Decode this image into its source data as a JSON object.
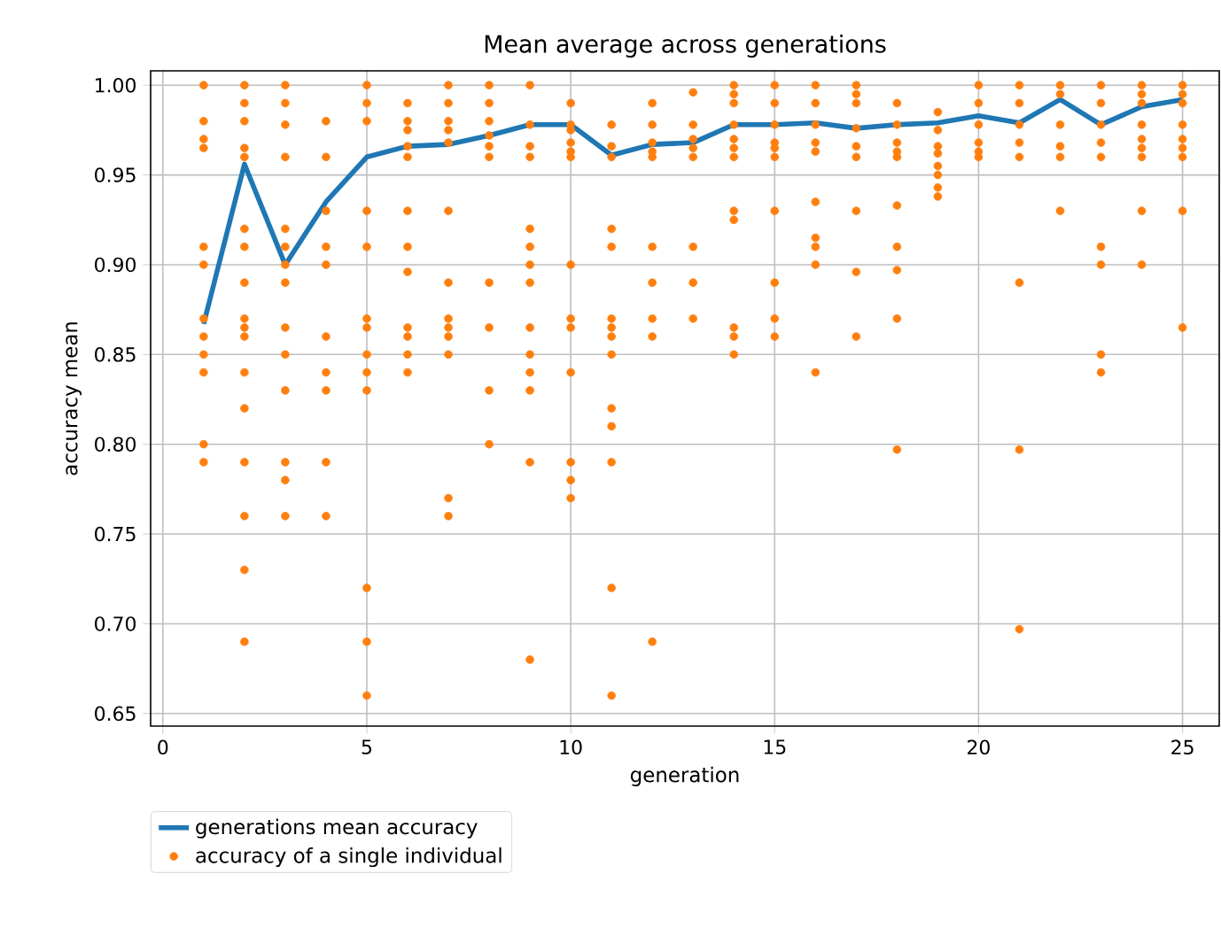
{
  "chart_data": {
    "type": "line",
    "title": "Mean average across generations",
    "xlabel": "generation",
    "ylabel": "accuracy mean",
    "xlim": [
      -0.3,
      25.9
    ],
    "ylim": [
      0.643,
      1.008
    ],
    "xticks": [
      0,
      5,
      10,
      15,
      20,
      25
    ],
    "yticks": [
      {
        "value": 0.65,
        "label": "0.65"
      },
      {
        "value": 0.7,
        "label": "0.70"
      },
      {
        "value": 0.75,
        "label": "0.75"
      },
      {
        "value": 0.8,
        "label": "0.80"
      },
      {
        "value": 0.85,
        "label": "0.85"
      },
      {
        "value": 0.9,
        "label": "0.90"
      },
      {
        "value": 0.95,
        "label": "0.95"
      },
      {
        "value": 1.0,
        "label": "1.00"
      }
    ],
    "grid": true,
    "legend": "bottom left",
    "series": [
      {
        "name": "generations mean accuracy",
        "color": "#1f77b4",
        "marker": "none",
        "line_style": "solid",
        "x": [
          1,
          2,
          3,
          4,
          5,
          6,
          7,
          8,
          9,
          10,
          11,
          12,
          13,
          14,
          15,
          16,
          17,
          18,
          19,
          20,
          21,
          22,
          23,
          24,
          25
        ],
        "values": [
          0.867,
          0.956,
          0.9,
          0.935,
          0.96,
          0.966,
          0.967,
          0.972,
          0.978,
          0.978,
          0.961,
          0.967,
          0.968,
          0.978,
          0.978,
          0.979,
          0.976,
          0.978,
          0.979,
          0.983,
          0.979,
          0.992,
          0.978,
          0.988,
          0.992
        ]
      },
      {
        "name": "accuracy of a single individual",
        "type": "scatter",
        "color": "#ff7f0e",
        "marker": "circle",
        "x": [
          1,
          1,
          1,
          1,
          1,
          1,
          1,
          1,
          1,
          1,
          1,
          1,
          2,
          2,
          2,
          2,
          2,
          2,
          2,
          2,
          2,
          2,
          2,
          2,
          2,
          2,
          2,
          2,
          2,
          3,
          3,
          3,
          3,
          3,
          3,
          3,
          3,
          3,
          3,
          3,
          3,
          3,
          3,
          4,
          4,
          4,
          4,
          4,
          4,
          4,
          4,
          4,
          4,
          5,
          5,
          5,
          5,
          5,
          5,
          5,
          5,
          5,
          5,
          5,
          5,
          5,
          6,
          6,
          6,
          6,
          6,
          6,
          6,
          6,
          6,
          6,
          6,
          6,
          7,
          7,
          7,
          7,
          7,
          7,
          7,
          7,
          7,
          7,
          7,
          7,
          7,
          8,
          8,
          8,
          8,
          8,
          8,
          8,
          8,
          8,
          8,
          9,
          9,
          9,
          9,
          9,
          9,
          9,
          9,
          9,
          9,
          9,
          9,
          9,
          9,
          10,
          10,
          10,
          10,
          10,
          10,
          10,
          10,
          10,
          10,
          10,
          10,
          10,
          11,
          11,
          11,
          11,
          11,
          11,
          11,
          11,
          11,
          11,
          11,
          11,
          11,
          11,
          12,
          12,
          12,
          12,
          12,
          12,
          12,
          12,
          12,
          12,
          13,
          13,
          13,
          13,
          13,
          13,
          13,
          13,
          14,
          14,
          14,
          14,
          14,
          14,
          14,
          14,
          14,
          14,
          14,
          14,
          15,
          15,
          15,
          15,
          15,
          15,
          15,
          15,
          15,
          15,
          16,
          16,
          16,
          16,
          16,
          16,
          16,
          16,
          16,
          16,
          17,
          17,
          17,
          17,
          17,
          17,
          17,
          17,
          17,
          18,
          18,
          18,
          18,
          18,
          18,
          18,
          18,
          18,
          18,
          19,
          19,
          19,
          19,
          19,
          19,
          19,
          19,
          20,
          20,
          20,
          20,
          20,
          20,
          21,
          21,
          21,
          21,
          21,
          21,
          21,
          21,
          22,
          22,
          22,
          22,
          22,
          22,
          23,
          23,
          23,
          23,
          23,
          23,
          23,
          23,
          23,
          24,
          24,
          24,
          24,
          24,
          24,
          24,
          24,
          24,
          25,
          25,
          25,
          25,
          25,
          25,
          25,
          25,
          25
        ],
        "values": [
          1.0,
          0.98,
          0.97,
          0.965,
          0.91,
          0.9,
          0.87,
          0.86,
          0.85,
          0.84,
          0.8,
          0.79,
          1.0,
          0.99,
          0.98,
          0.965,
          0.96,
          0.92,
          0.91,
          0.89,
          0.87,
          0.865,
          0.86,
          0.84,
          0.82,
          0.79,
          0.76,
          0.73,
          0.69,
          1.0,
          0.99,
          0.978,
          0.96,
          0.92,
          0.91,
          0.9,
          0.89,
          0.865,
          0.85,
          0.83,
          0.79,
          0.78,
          0.76,
          0.98,
          0.96,
          0.93,
          0.91,
          0.9,
          0.86,
          0.84,
          0.83,
          0.79,
          0.76,
          1.0,
          0.99,
          0.98,
          0.93,
          0.91,
          0.87,
          0.865,
          0.85,
          0.84,
          0.83,
          0.72,
          0.69,
          0.66,
          0.99,
          0.98,
          0.975,
          0.966,
          0.96,
          0.93,
          0.91,
          0.896,
          0.865,
          0.86,
          0.85,
          0.84,
          1.0,
          0.99,
          0.98,
          0.975,
          0.968,
          0.93,
          0.89,
          0.87,
          0.865,
          0.86,
          0.85,
          0.77,
          0.76,
          1.0,
          0.99,
          0.98,
          0.972,
          0.966,
          0.96,
          0.89,
          0.865,
          0.83,
          0.8,
          1.0,
          0.978,
          0.966,
          0.96,
          0.92,
          0.91,
          0.9,
          0.89,
          0.865,
          0.85,
          0.84,
          0.83,
          0.79,
          0.68,
          0.99,
          0.978,
          0.975,
          0.968,
          0.963,
          0.96,
          0.9,
          0.87,
          0.865,
          0.84,
          0.79,
          0.78,
          0.77,
          0.978,
          0.966,
          0.96,
          0.92,
          0.91,
          0.87,
          0.865,
          0.86,
          0.85,
          0.82,
          0.81,
          0.79,
          0.72,
          0.66,
          0.99,
          0.978,
          0.968,
          0.963,
          0.96,
          0.91,
          0.89,
          0.87,
          0.86,
          0.69,
          0.996,
          0.978,
          0.97,
          0.965,
          0.96,
          0.91,
          0.89,
          0.87,
          1.0,
          0.995,
          0.99,
          0.978,
          0.97,
          0.965,
          0.96,
          0.93,
          0.925,
          0.865,
          0.86,
          0.85,
          1.0,
          0.99,
          0.978,
          0.968,
          0.965,
          0.96,
          0.93,
          0.89,
          0.87,
          0.86,
          1.0,
          0.99,
          0.978,
          0.968,
          0.963,
          0.935,
          0.915,
          0.91,
          0.9,
          0.84,
          1.0,
          0.995,
          0.99,
          0.976,
          0.966,
          0.96,
          0.93,
          0.896,
          0.86,
          0.99,
          0.978,
          0.968,
          0.963,
          0.96,
          0.933,
          0.91,
          0.897,
          0.87,
          0.797,
          0.985,
          0.975,
          0.966,
          0.962,
          0.955,
          0.95,
          0.943,
          0.938,
          1.0,
          0.99,
          0.978,
          0.968,
          0.963,
          0.96,
          1.0,
          0.99,
          0.978,
          0.968,
          0.96,
          0.89,
          0.797,
          0.697,
          1.0,
          0.995,
          0.978,
          0.966,
          0.96,
          0.93,
          1.0,
          0.99,
          0.978,
          0.968,
          0.96,
          0.91,
          0.9,
          0.85,
          0.84,
          1.0,
          0.995,
          0.99,
          0.978,
          0.97,
          0.965,
          0.96,
          0.93,
          0.9,
          1.0,
          0.995,
          0.99,
          0.978,
          0.97,
          0.965,
          0.96,
          0.93,
          0.865
        ]
      }
    ]
  }
}
